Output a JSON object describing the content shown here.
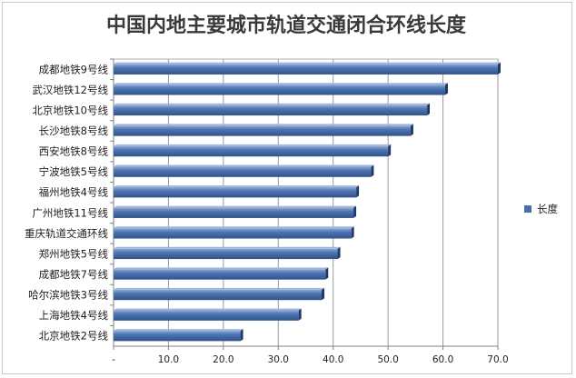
{
  "chart_data": {
    "type": "bar",
    "orientation": "horizontal",
    "title": "中国内地主要城市轨道交通闭合环线长度",
    "categories": [
      "成都地铁9号线",
      "武汉地铁12号线",
      "北京地铁10号线",
      "长沙地铁8号线",
      "西安地铁8号线",
      "宁波地铁5号线",
      "福州地铁4号线",
      "广州地铁11号线",
      "重庆轨道交通环线",
      "郑州地铁5号线",
      "成都地铁7号线",
      "哈尔滨地铁3号线",
      "上海地铁4号线",
      "北京地铁2号线"
    ],
    "series": [
      {
        "name": "长度",
        "color": "#4a6fa5",
        "values": [
          70.0,
          60.4,
          57.1,
          54.1,
          50.0,
          46.9,
          44.2,
          43.7,
          43.3,
          40.8,
          38.6,
          37.9,
          33.7,
          23.1
        ]
      }
    ],
    "xlim": [
      0,
      70
    ],
    "xticks": [
      "-",
      "10.0",
      "20.0",
      "30.0",
      "40.0",
      "50.0",
      "60.0",
      "70.0"
    ],
    "grid": true,
    "legend": "right"
  }
}
